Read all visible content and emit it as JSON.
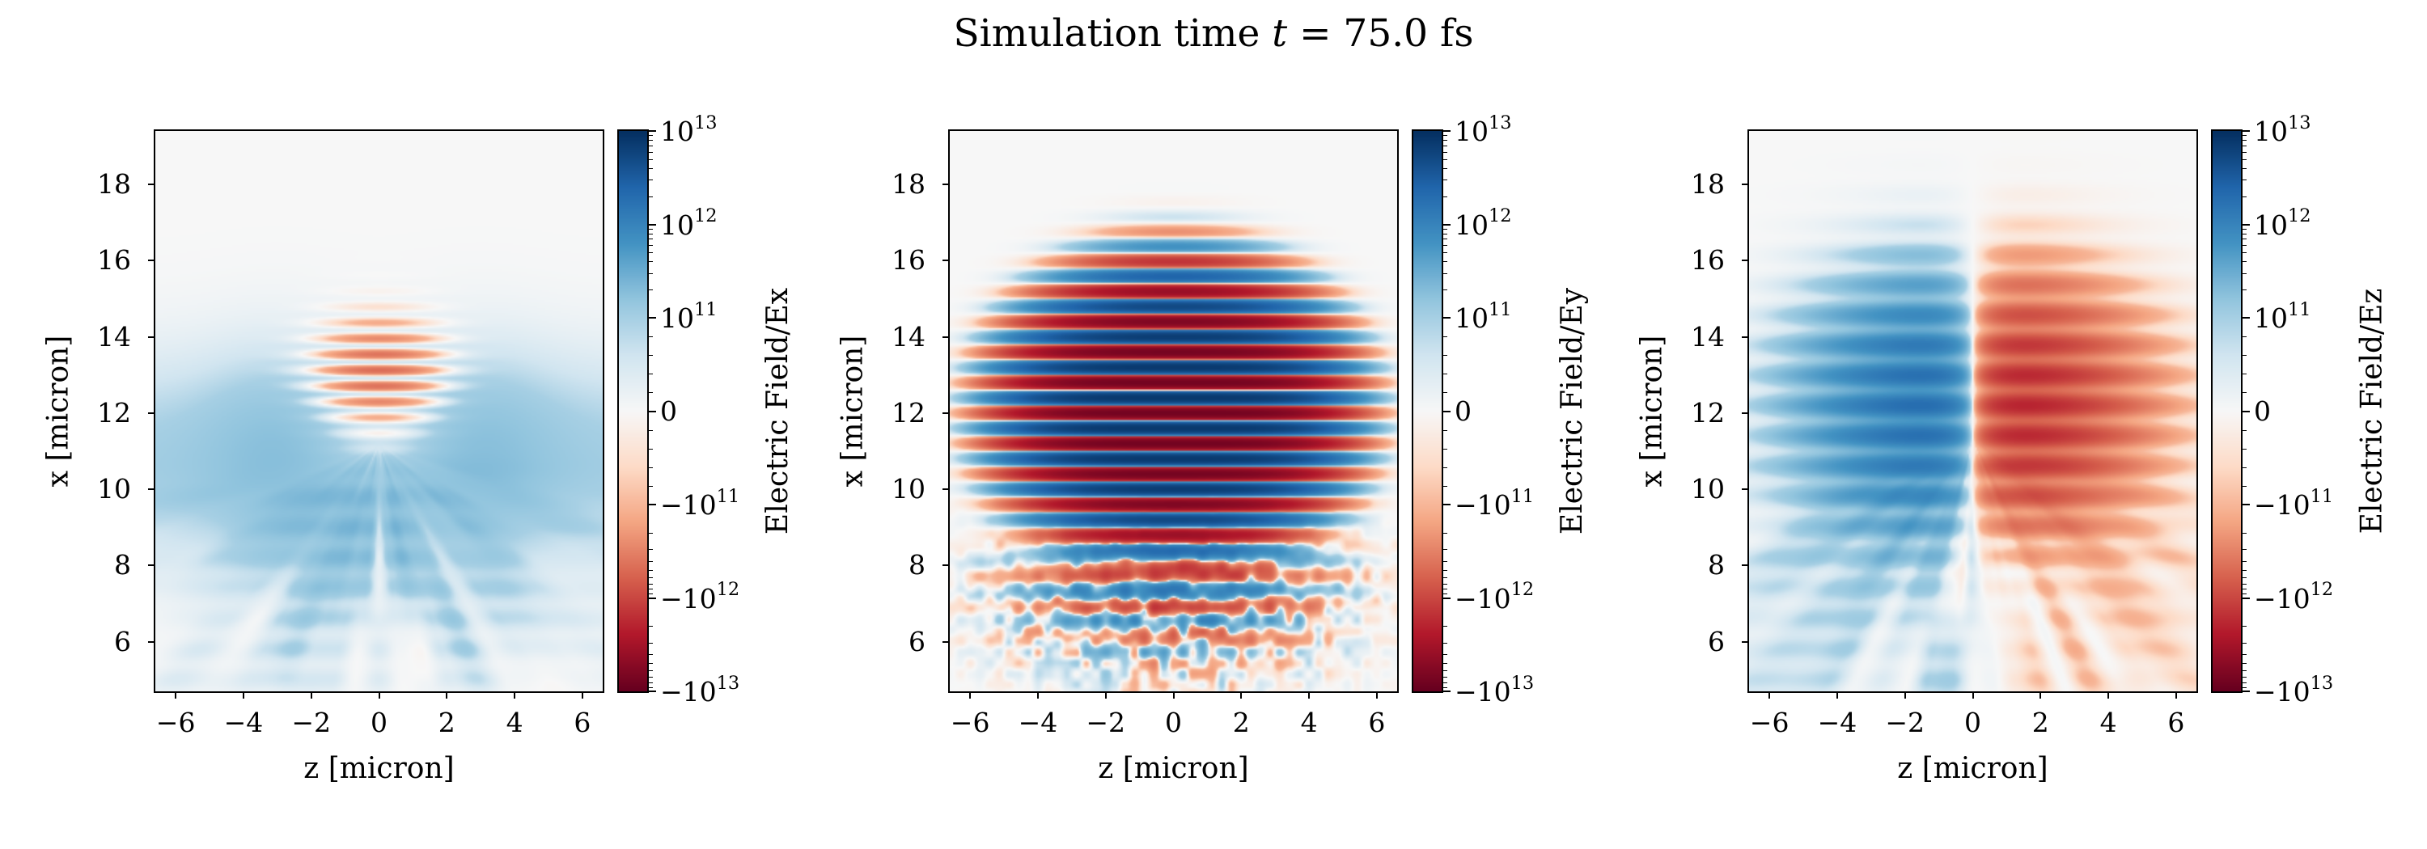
{
  "figure": {
    "title": {
      "prefix": "Simulation time ",
      "variable": "t",
      "suffix": " = 75.0 fs"
    }
  },
  "colormap": {
    "name": "RdBu",
    "anchors": [
      "#67001f",
      "#b2182b",
      "#d6604d",
      "#f4a582",
      "#fddbc7",
      "#f7f7f7",
      "#d1e5f0",
      "#92c5de",
      "#4393c3",
      "#2166ac",
      "#053061"
    ]
  },
  "norm": {
    "type": "symlog",
    "linthresh": 100000000000.0,
    "vmin": -10000000000000.0,
    "vmax": 10000000000000.0,
    "decades_per_side": 2
  },
  "chart_data": [
    {
      "type": "heatmap",
      "field": "Ex",
      "xlabel": "z [micron]",
      "ylabel": "x [micron]",
      "xlim": [
        -6.6,
        6.6
      ],
      "ylim": [
        4.7,
        19.4
      ],
      "xticks": [
        -6,
        -4,
        -2,
        0,
        2,
        4,
        6
      ],
      "xtick_labels": [
        "−6",
        "−4",
        "−2",
        "0",
        "2",
        "4",
        "6"
      ],
      "yticks": [
        6,
        8,
        10,
        12,
        14,
        16,
        18
      ],
      "ytick_labels": [
        "6",
        "8",
        "10",
        "12",
        "14",
        "16",
        "18"
      ],
      "colorbar": {
        "label": "Electric Field/Ex",
        "ticks": [
          10000000000000.0,
          1000000000000.0,
          100000000000.0,
          0,
          -100000000000.0,
          -1000000000000.0,
          -10000000000000.0
        ],
        "tick_labels": [
          "10^13",
          "10^12",
          "10^11",
          "0",
          "−10^11",
          "−10^12",
          "−10^13"
        ]
      },
      "description": "Weak component: faint blue lobes (~2e11) spanning x≈8–13 across all z, an orange finely striped wave packet (~−5e11) at z∈[−2,2], x∈[11.5,14.5], and pale blue streaks fanning downward toward the bottom corners.",
      "field_model": {
        "kind": "Ex",
        "packet": {
          "x0": 13.1,
          "sx": 1.15,
          "sz": 1.6,
          "amp": -500000000000.0,
          "stripe_period": 0.42
        },
        "wing": {
          "x0": 10.8,
          "sx": 2.6,
          "amp": 190000000000.0
        },
        "fan": {
          "apex": 11.2,
          "reach": 8.5,
          "spread": 1.1,
          "thFreq": 9,
          "rFreq": 0.35,
          "amp": 200000000000.0,
          "bias": 0.45
        },
        "seed": 1
      }
    },
    {
      "type": "heatmap",
      "field": "Ey",
      "xlabel": "z [micron]",
      "ylabel": "x [micron]",
      "xlim": [
        -6.6,
        6.6
      ],
      "ylim": [
        4.7,
        19.4
      ],
      "xticks": [
        -6,
        -4,
        -2,
        0,
        2,
        4,
        6
      ],
      "xtick_labels": [
        "−6",
        "−4",
        "−2",
        "0",
        "2",
        "4",
        "6"
      ],
      "yticks": [
        6,
        8,
        10,
        12,
        14,
        16,
        18
      ],
      "ytick_labels": [
        "6",
        "8",
        "10",
        "12",
        "14",
        "16",
        "18"
      ],
      "colorbar": {
        "label": "Electric Field/Ey",
        "ticks": [
          10000000000000.0,
          1000000000000.0,
          100000000000.0,
          0,
          -100000000000.0,
          -1000000000000.0,
          -10000000000000.0
        ],
        "tick_labels": [
          "10^13",
          "10^12",
          "10^11",
          "0",
          "−10^11",
          "−10^12",
          "−10^13"
        ]
      },
      "description": "Dominant transverse laser field: strong horizontal stripes alternating near ±10^13 (dark red/dark blue) inside an elliptical envelope centered at z=0, x≈12, spanning x≈8–16 and z≈−5..5, with weaker speckled stripes below x≈8.",
      "field_model": {
        "kind": "Ey",
        "main": {
          "x0": 12.0,
          "sx": 3.4,
          "sz": 4.4,
          "superg": 0.9,
          "amp": 8000000000000.0,
          "wavelength": 0.8,
          "phase": -1.57
        },
        "lower": {
          "x0": 7.6,
          "sx": 1.2,
          "amp": 1600000000000.0,
          "z_extent": 3.4
        },
        "speckle": {
          "amp": 700000000000.0,
          "x0": 7.0,
          "sx": 1.8,
          "sz": 4.0
        },
        "seed": 2
      }
    },
    {
      "type": "heatmap",
      "field": "Ez",
      "xlabel": "z [micron]",
      "ylabel": "x [micron]",
      "xlim": [
        -6.6,
        6.6
      ],
      "ylim": [
        4.7,
        19.4
      ],
      "xticks": [
        -6,
        -4,
        -2,
        0,
        2,
        4,
        6
      ],
      "xtick_labels": [
        "−6",
        "−4",
        "−2",
        "0",
        "2",
        "4",
        "6"
      ],
      "yticks": [
        6,
        8,
        10,
        12,
        14,
        16,
        18
      ],
      "ytick_labels": [
        "6",
        "8",
        "10",
        "12",
        "14",
        "16",
        "18"
      ],
      "colorbar": {
        "label": "Electric Field/Ez",
        "ticks": [
          10000000000000.0,
          1000000000000.0,
          100000000000.0,
          0,
          -100000000000.0,
          -1000000000000.0,
          -10000000000000.0
        ],
        "tick_labels": [
          "10^13",
          "10^12",
          "10^11",
          "0",
          "−10^11",
          "−10^12",
          "−10^13"
        ]
      },
      "description": "Antisymmetric component: blue lobe (positive, ~2e12) for z<0 and orange lobe (negative) for z>0 around x≈10–14 with fine horizontal striping, plus faint blue/orange streaks fanning to the lower-left/lower-right corners.",
      "field_model": {
        "kind": "Ez",
        "main": {
          "x0": 12.2,
          "sx": 2.6,
          "sz": 3.6,
          "amp": 2800000000000.0,
          "zscale": 1.2,
          "stripe_period": 0.8,
          "stripe_depth": 0.35
        },
        "fan": {
          "apex": 11.3,
          "reach": 9.5,
          "spread": 1.4,
          "thFreq": 10,
          "rFreq": 0.3,
          "amp": 240000000000.0,
          "antisym": 0.6
        },
        "seed": 3
      }
    }
  ]
}
